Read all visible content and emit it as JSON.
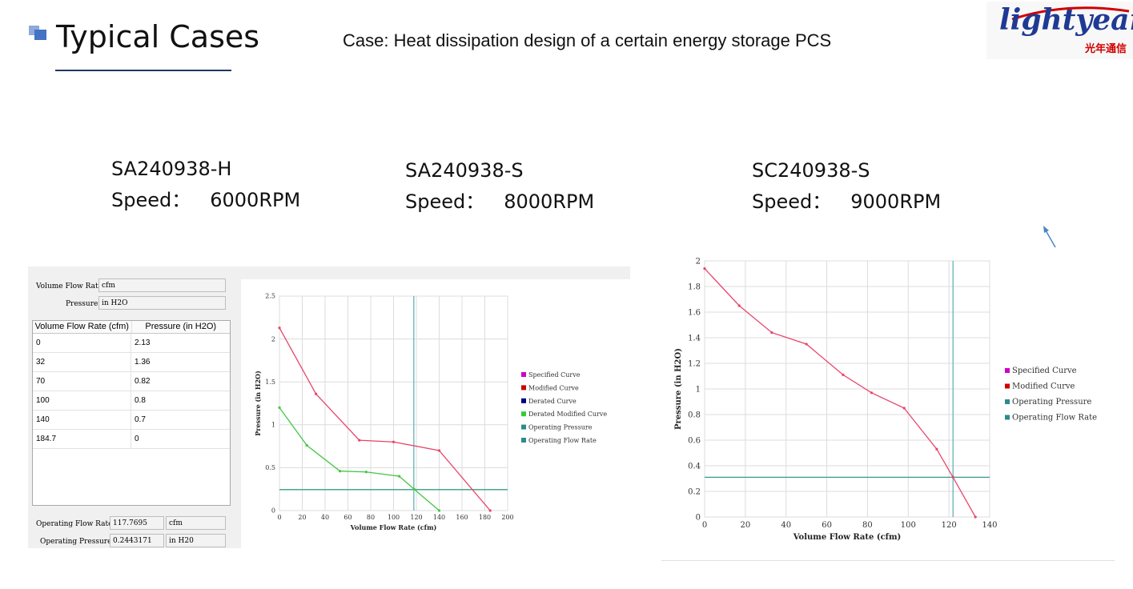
{
  "header": {
    "title": "Typical Cases",
    "caption": "Case: Heat dissipation design of a certain energy storage PCS",
    "logo_text": "lightyear",
    "logo_sub": "光年通信"
  },
  "fans": [
    {
      "model": "SA240938-H",
      "speed_label": "Speed：",
      "speed_value": "6000RPM"
    },
    {
      "model": "SA240938-S",
      "speed_label": "Speed：",
      "speed_value": "8000RPM"
    },
    {
      "model": "SC240938-S",
      "speed_label": "Speed：",
      "speed_value": "9000RPM"
    }
  ],
  "left_panel": {
    "flow_label": "Volume Flow Rate",
    "flow_unit": "cfm",
    "pressure_label": "Pressure",
    "pressure_unit": "in H2O",
    "table_headers": [
      "Volume Flow Rate (cfm)",
      "Pressure (in H2O)"
    ],
    "table_rows": [
      [
        "0",
        "2.13"
      ],
      [
        "32",
        "1.36"
      ],
      [
        "70",
        "0.82"
      ],
      [
        "100",
        "0.8"
      ],
      [
        "140",
        "0.7"
      ],
      [
        "184.7",
        "0"
      ]
    ],
    "op_flow_label": "Operating Flow Rate",
    "op_flow_value": "117.7695",
    "op_flow_unit": "cfm",
    "op_pressure_label": "Operating Pressure",
    "op_pressure_value": "0.2443171",
    "op_pressure_unit": "in H20"
  },
  "chart_data": [
    {
      "type": "line",
      "xlabel": "Volume Flow Rate (cfm)",
      "ylabel": "Pressure (in H2O)",
      "xlim": [
        0,
        200
      ],
      "ylim": [
        0,
        2.5
      ],
      "xticks": [
        "0",
        "20",
        "40",
        "60",
        "80",
        "100",
        "120",
        "140",
        "160",
        "180",
        "200"
      ],
      "yticks": [
        "0",
        "0.5",
        "1",
        "1.5",
        "2",
        "2.5"
      ],
      "grid": true,
      "legend_position": "right",
      "legend": [
        {
          "name": "Specified Curve",
          "color": "#cc00cc"
        },
        {
          "name": "Modified Curve",
          "color": "#cc0000"
        },
        {
          "name": "Derated Curve",
          "color": "#000080"
        },
        {
          "name": "Derated Modified Curve",
          "color": "#33cc33"
        },
        {
          "name": "Operating Pressure",
          "color": "#2e8b8b"
        },
        {
          "name": "Operating Flow Rate",
          "color": "#2e8b8b"
        }
      ],
      "series": [
        {
          "name": "Modified Curve",
          "color": "#e8456a",
          "points": [
            [
              0,
              2.13
            ],
            [
              32,
              1.36
            ],
            [
              70,
              0.82
            ],
            [
              100,
              0.8
            ],
            [
              140,
              0.7
            ],
            [
              184.7,
              0
            ]
          ]
        },
        {
          "name": "Derated Modified Curve",
          "color": "#44c644",
          "points": [
            [
              0,
              1.2
            ],
            [
              24,
              0.76
            ],
            [
              53,
              0.46
            ],
            [
              76,
              0.45
            ],
            [
              105,
              0.4
            ],
            [
              118,
              0.25
            ],
            [
              140,
              0
            ]
          ]
        }
      ],
      "operating_point": {
        "flow": 117.7695,
        "pressure": 0.2443171
      }
    },
    {
      "type": "line",
      "xlabel": "Volume Flow Rate (cfm)",
      "ylabel": "Pressure (in H2O)",
      "xlim": [
        0,
        140
      ],
      "ylim": [
        0,
        2
      ],
      "xticks": [
        "0",
        "20",
        "40",
        "60",
        "80",
        "100",
        "120",
        "140"
      ],
      "yticks": [
        "0",
        "0.2",
        "0.4",
        "0.6",
        "0.8",
        "1",
        "1.2",
        "1.4",
        "1.6",
        "1.8",
        "2"
      ],
      "grid": true,
      "legend_position": "right",
      "legend": [
        {
          "name": "Specified Curve",
          "color": "#cc00cc"
        },
        {
          "name": "Modified Curve",
          "color": "#cc0000"
        },
        {
          "name": "Operating Pressure",
          "color": "#2e8b8b"
        },
        {
          "name": "Operating Flow Rate",
          "color": "#2e8b8b"
        }
      ],
      "series": [
        {
          "name": "Modified Curve",
          "color": "#e8456a",
          "points": [
            [
              0,
              1.94
            ],
            [
              17,
              1.65
            ],
            [
              33,
              1.44
            ],
            [
              50,
              1.35
            ],
            [
              68,
              1.11
            ],
            [
              82,
              0.97
            ],
            [
              98,
              0.85
            ],
            [
              114,
              0.53
            ],
            [
              122,
              0.31
            ],
            [
              133,
              0
            ]
          ]
        }
      ],
      "operating_point": {
        "flow": 122,
        "pressure": 0.31
      }
    }
  ]
}
